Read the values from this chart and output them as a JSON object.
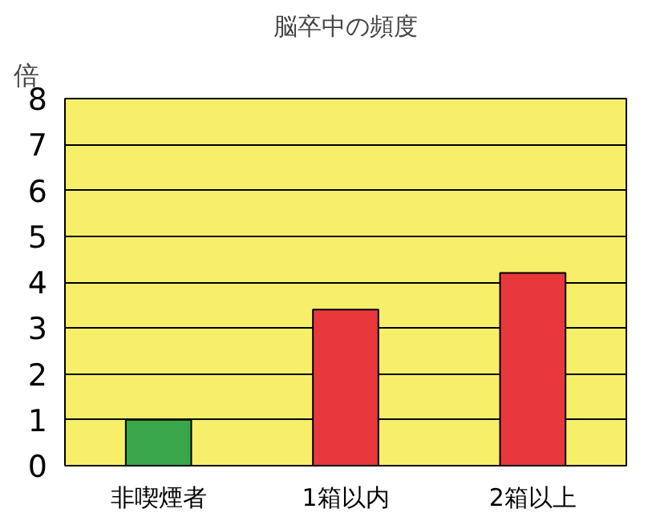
{
  "chart_data": {
    "type": "bar",
    "title": "脳卒中の頻度",
    "ylabel": "倍",
    "categories": [
      "非喫煙者",
      "1箱以内",
      "2箱以上"
    ],
    "values": [
      1,
      3.4,
      4.2
    ],
    "colors": [
      "#3aa64a",
      "#e8383c",
      "#e8383c"
    ],
    "ylim": [
      0,
      8
    ],
    "yticks": [
      0,
      1,
      2,
      3,
      4,
      5,
      6,
      7,
      8
    ],
    "grid": "y"
  }
}
